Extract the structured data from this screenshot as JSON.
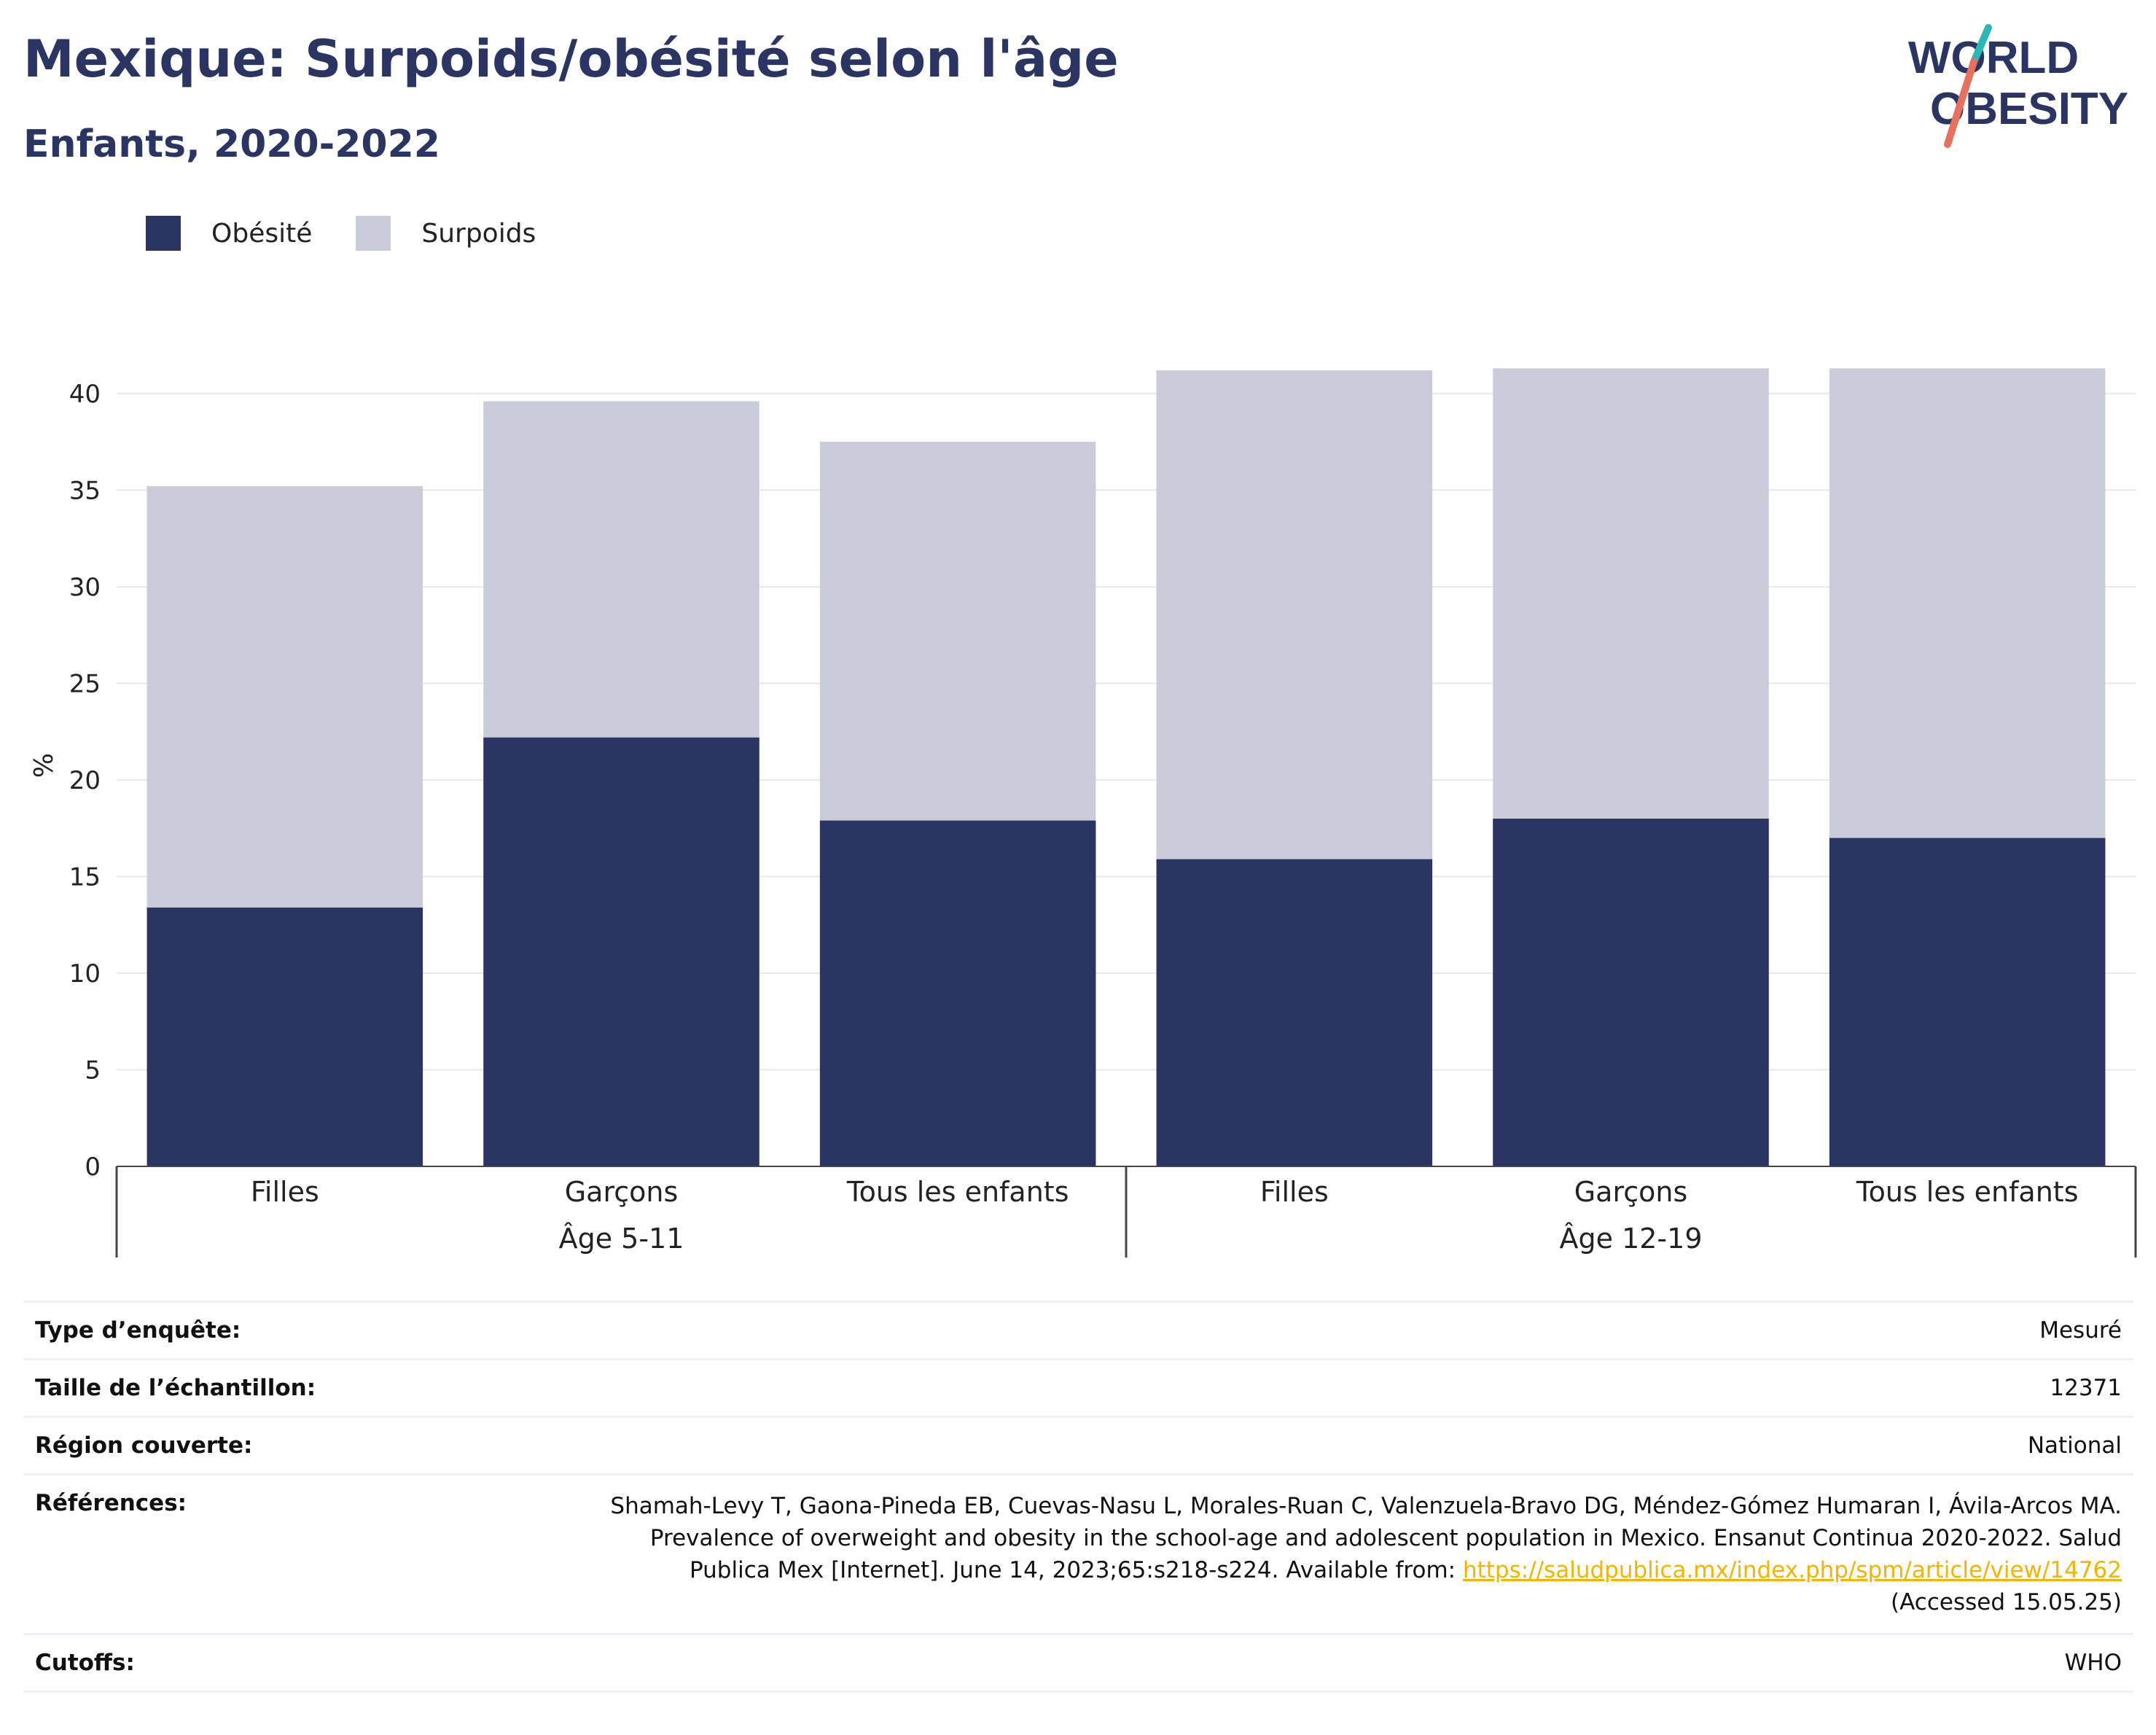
{
  "header": {
    "title": "Mexique: Surpoids/obésité selon l'âge",
    "subtitle": "Enfants, 2020-2022"
  },
  "logo": {
    "line1": "WORLD",
    "line2": "OBESITY",
    "slash_colors": [
      "#2cb6b6",
      "#e8715e"
    ]
  },
  "colors": {
    "obesity": "#2a3563",
    "overweight": "#cacdd9",
    "text_dark": "#2a3563",
    "link": "#f5b400"
  },
  "chart_data": {
    "type": "bar",
    "stacked": true,
    "ylabel": "%",
    "ylim": [
      0,
      41.5
    ],
    "yticks": [
      0,
      5,
      10,
      15,
      20,
      25,
      30,
      35,
      40
    ],
    "grid": true,
    "legend_position": "top-left",
    "groups": [
      {
        "label": "Âge 5-11",
        "categories": [
          "Filles",
          "Garçons",
          "Tous les enfants"
        ]
      },
      {
        "label": "Âge 12-19",
        "categories": [
          "Filles",
          "Garçons",
          "Tous les enfants"
        ]
      }
    ],
    "categories": [
      "Filles",
      "Garçons",
      "Tous les enfants",
      "Filles",
      "Garçons",
      "Tous les enfants"
    ],
    "series": [
      {
        "name": "Obésité",
        "values": [
          13.4,
          22.2,
          17.9,
          15.9,
          18.0,
          17.0
        ]
      },
      {
        "name": "Surpoids",
        "values": [
          21.8,
          17.4,
          19.6,
          25.3,
          23.3,
          24.3
        ]
      }
    ]
  },
  "meta": {
    "survey_type": {
      "label": "Type d’enquête:",
      "value": "Mesuré"
    },
    "sample_size": {
      "label": "Taille de l’échantillon:",
      "value": "12371"
    },
    "region": {
      "label": "Région couverte:",
      "value": "National"
    },
    "references": {
      "label": "Références:",
      "text": "Shamah-Levy T, Gaona-Pineda EB, Cuevas-Nasu L, Morales-Ruan C, Valenzuela-Bravo DG, Méndez-Gómez Humaran I, Ávila-Arcos MA. Prevalence of overweight and obesity in the school-age and adolescent population in Mexico. Ensanut Continua 2020-2022. Salud Publica Mex [Internet]. June 14, 2023;65:s218-s224. Available from: ",
      "link": "https://saludpublica.mx/index.php/spm/article/view/14762",
      "accessed": "(Accessed 15.05.25)"
    },
    "cutoffs": {
      "label": "Cutoffs:",
      "value": "WHO"
    }
  }
}
